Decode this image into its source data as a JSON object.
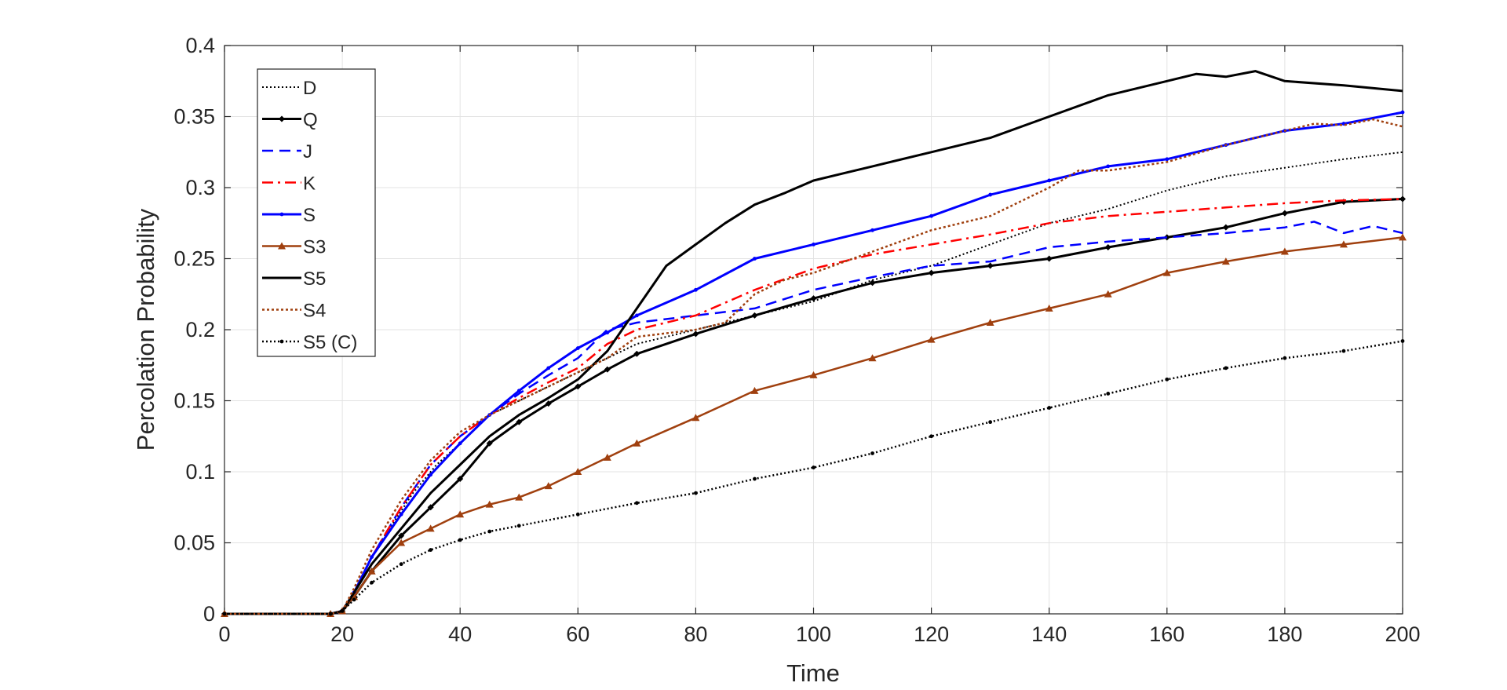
{
  "chart_data": {
    "type": "line",
    "title": "",
    "xlabel": "Time",
    "ylabel": "Percolation Probability",
    "xlim": [
      0,
      200
    ],
    "ylim": [
      0,
      0.4
    ],
    "xticks": [
      "0",
      "20",
      "40",
      "60",
      "80",
      "100",
      "120",
      "140",
      "160",
      "180",
      "200"
    ],
    "yticks": [
      "0",
      "0.05",
      "0.1",
      "0.15",
      "0.2",
      "0.25",
      "0.3",
      "0.35",
      "0.4"
    ],
    "grid": true,
    "legend_position": "top-left",
    "series": [
      {
        "name": "D",
        "color": "#000000",
        "dash": "2,3",
        "width": 2,
        "marker": "none",
        "x": [
          0,
          18,
          20,
          22,
          25,
          28,
          32,
          36,
          40,
          45,
          50,
          55,
          60,
          65,
          70,
          80,
          90,
          100,
          110,
          120,
          130,
          140,
          150,
          160,
          170,
          180,
          190,
          200
        ],
        "y": [
          0,
          0,
          0.002,
          0.015,
          0.04,
          0.06,
          0.085,
          0.105,
          0.12,
          0.14,
          0.15,
          0.16,
          0.17,
          0.18,
          0.19,
          0.2,
          0.21,
          0.22,
          0.235,
          0.245,
          0.26,
          0.275,
          0.285,
          0.298,
          0.308,
          0.314,
          0.32,
          0.325
        ]
      },
      {
        "name": "Q",
        "color": "#000000",
        "dash": "",
        "width": 3,
        "marker": "diamond",
        "x": [
          0,
          18,
          20,
          22,
          25,
          30,
          35,
          40,
          45,
          50,
          55,
          60,
          65,
          70,
          80,
          90,
          100,
          110,
          120,
          130,
          140,
          150,
          160,
          170,
          180,
          190,
          200
        ],
        "y": [
          0,
          0,
          0.002,
          0.012,
          0.03,
          0.055,
          0.075,
          0.095,
          0.12,
          0.135,
          0.148,
          0.16,
          0.172,
          0.183,
          0.197,
          0.21,
          0.222,
          0.233,
          0.24,
          0.245,
          0.25,
          0.258,
          0.265,
          0.272,
          0.282,
          0.29,
          0.292
        ]
      },
      {
        "name": "J",
        "color": "#0000ff",
        "dash": "14,8",
        "width": 2.5,
        "marker": "none",
        "x": [
          0,
          18,
          20,
          22,
          25,
          30,
          35,
          40,
          45,
          50,
          55,
          60,
          65,
          70,
          80,
          90,
          100,
          110,
          120,
          130,
          140,
          150,
          160,
          170,
          180,
          185,
          190,
          195,
          200
        ],
        "y": [
          0,
          0,
          0.002,
          0.015,
          0.04,
          0.075,
          0.105,
          0.125,
          0.14,
          0.155,
          0.168,
          0.18,
          0.2,
          0.205,
          0.21,
          0.215,
          0.228,
          0.237,
          0.245,
          0.248,
          0.258,
          0.262,
          0.265,
          0.268,
          0.272,
          0.276,
          0.268,
          0.273,
          0.268
        ]
      },
      {
        "name": "K",
        "color": "#ff0000",
        "dash": "14,6,3,6",
        "width": 2.5,
        "marker": "none",
        "x": [
          0,
          18,
          20,
          22,
          25,
          30,
          35,
          40,
          45,
          50,
          55,
          60,
          65,
          70,
          80,
          90,
          100,
          110,
          120,
          130,
          140,
          150,
          160,
          170,
          180,
          190,
          200
        ],
        "y": [
          0,
          0,
          0.002,
          0.015,
          0.04,
          0.075,
          0.105,
          0.125,
          0.14,
          0.152,
          0.163,
          0.173,
          0.19,
          0.2,
          0.21,
          0.228,
          0.243,
          0.253,
          0.26,
          0.267,
          0.275,
          0.28,
          0.283,
          0.286,
          0.289,
          0.291,
          0.292
        ]
      },
      {
        "name": "S",
        "color": "#0000ff",
        "dash": "",
        "width": 3,
        "marker": "dot",
        "x": [
          0,
          18,
          20,
          22,
          25,
          30,
          35,
          40,
          45,
          50,
          55,
          60,
          65,
          70,
          80,
          90,
          100,
          110,
          120,
          130,
          140,
          150,
          160,
          170,
          180,
          190,
          200
        ],
        "y": [
          0,
          0,
          0.002,
          0.015,
          0.04,
          0.07,
          0.098,
          0.12,
          0.14,
          0.157,
          0.173,
          0.187,
          0.198,
          0.21,
          0.228,
          0.25,
          0.26,
          0.27,
          0.28,
          0.295,
          0.305,
          0.315,
          0.32,
          0.33,
          0.34,
          0.345,
          0.353
        ]
      },
      {
        "name": "S3",
        "color": "#a0400f",
        "dash": "",
        "width": 2.5,
        "marker": "triangle",
        "x": [
          0,
          18,
          20,
          22,
          25,
          30,
          35,
          40,
          45,
          50,
          55,
          60,
          65,
          70,
          80,
          90,
          100,
          110,
          120,
          130,
          140,
          150,
          160,
          170,
          180,
          190,
          200
        ],
        "y": [
          0,
          0,
          0.002,
          0.012,
          0.03,
          0.05,
          0.06,
          0.07,
          0.077,
          0.082,
          0.09,
          0.1,
          0.11,
          0.12,
          0.138,
          0.157,
          0.168,
          0.18,
          0.193,
          0.205,
          0.215,
          0.225,
          0.24,
          0.248,
          0.255,
          0.26,
          0.265
        ]
      },
      {
        "name": "S5",
        "color": "#000000",
        "dash": "",
        "width": 3,
        "marker": "none",
        "x": [
          0,
          18,
          20,
          22,
          25,
          30,
          35,
          40,
          45,
          50,
          55,
          60,
          65,
          70,
          75,
          80,
          85,
          90,
          95,
          100,
          105,
          110,
          120,
          130,
          140,
          150,
          160,
          165,
          170,
          175,
          180,
          190,
          200
        ],
        "y": [
          0,
          0,
          0.002,
          0.015,
          0.035,
          0.06,
          0.085,
          0.105,
          0.125,
          0.14,
          0.152,
          0.165,
          0.185,
          0.215,
          0.245,
          0.26,
          0.275,
          0.288,
          0.296,
          0.305,
          0.31,
          0.315,
          0.325,
          0.335,
          0.35,
          0.365,
          0.375,
          0.38,
          0.378,
          0.382,
          0.375,
          0.372,
          0.368
        ]
      },
      {
        "name": "S4",
        "color": "#a0400f",
        "dash": "3,3",
        "width": 2.5,
        "marker": "none",
        "x": [
          0,
          18,
          20,
          22,
          25,
          30,
          35,
          40,
          45,
          50,
          55,
          60,
          65,
          70,
          80,
          85,
          90,
          95,
          100,
          110,
          120,
          130,
          140,
          145,
          150,
          160,
          170,
          180,
          185,
          190,
          195,
          200
        ],
        "y": [
          0,
          0,
          0.002,
          0.018,
          0.045,
          0.08,
          0.108,
          0.128,
          0.14,
          0.15,
          0.16,
          0.17,
          0.18,
          0.195,
          0.2,
          0.205,
          0.225,
          0.235,
          0.24,
          0.255,
          0.27,
          0.28,
          0.3,
          0.312,
          0.312,
          0.318,
          0.33,
          0.34,
          0.345,
          0.344,
          0.348,
          0.343
        ]
      },
      {
        "name": "S5 (C)",
        "color": "#000000",
        "dash": "2,3",
        "width": 2.5,
        "marker": "dot",
        "x": [
          0,
          18,
          20,
          22,
          25,
          30,
          35,
          40,
          45,
          50,
          60,
          70,
          80,
          90,
          100,
          110,
          120,
          130,
          140,
          150,
          160,
          170,
          180,
          190,
          200
        ],
        "y": [
          0,
          0,
          0.002,
          0.01,
          0.022,
          0.035,
          0.045,
          0.052,
          0.058,
          0.062,
          0.07,
          0.078,
          0.085,
          0.095,
          0.103,
          0.113,
          0.125,
          0.135,
          0.145,
          0.155,
          0.165,
          0.173,
          0.18,
          0.185,
          0.192
        ]
      }
    ]
  }
}
